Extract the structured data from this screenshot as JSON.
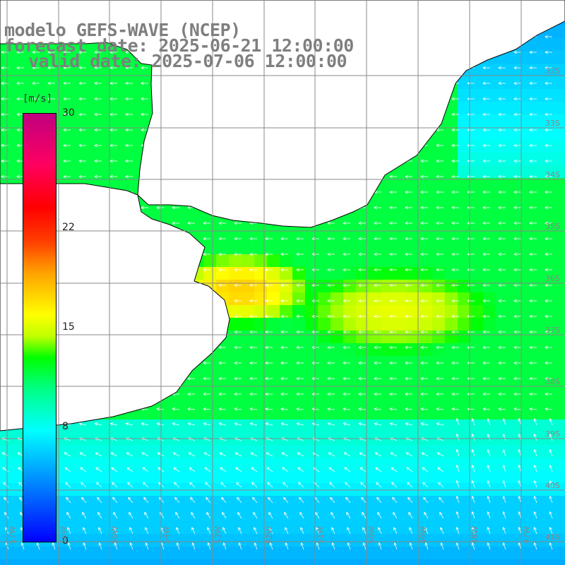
{
  "title": {
    "line1": "modelo GEFS-WAVE (NCEP)",
    "line2": "forecast date: 2025-06-21 12:00:00",
    "line3": "valid date: 2025-07-06 12:00:00"
  },
  "colorbar": {
    "unit": "[m/s]",
    "ticks": [
      {
        "label": "30",
        "value": 30
      },
      {
        "label": "22",
        "value": 22
      },
      {
        "label": "15",
        "value": 15
      },
      {
        "label": "8",
        "value": 8
      },
      {
        "label": "0",
        "value": 0
      }
    ],
    "range": [
      0,
      30
    ]
  },
  "lat_labels": [
    "32S",
    "33S",
    "34S",
    "35S",
    "36S",
    "37S",
    "38S",
    "39S",
    "40S",
    "41S"
  ],
  "lon_labels": [
    "57W",
    "56W",
    "55W",
    "54W",
    "53W",
    "52W",
    "51W",
    "50W",
    "49W",
    "48W",
    "47W"
  ],
  "colors": {
    "land": "#ffffff",
    "coastline": "#000000",
    "grid": "#888888",
    "arrow": "#ffffff",
    "title": "#7f7f7f"
  },
  "map": {
    "type": "wind-speed field with direction arrows",
    "region": "Rio de la Plata / Uruguay coast",
    "max_speed_approx": 20
  }
}
